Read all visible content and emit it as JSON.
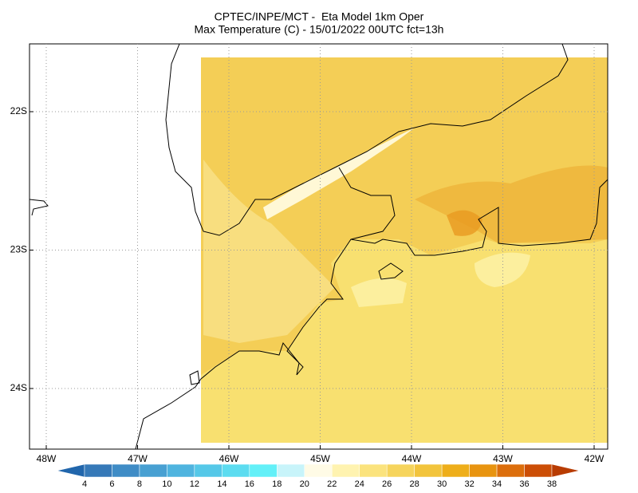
{
  "title_line1": "CPTEC/INPE/MCT -  Eta Model 1km Oper",
  "title_line2": "Max Temperature (C) - 15/01/2022 00UTC fct=13h",
  "map": {
    "lat_ticks": [
      {
        "value": -22,
        "label": "22S"
      },
      {
        "value": -23,
        "label": "23S"
      },
      {
        "value": -24,
        "label": "24S"
      }
    ],
    "lon_ticks": [
      {
        "value": -48,
        "label": "48W"
      },
      {
        "value": -47,
        "label": "47W"
      },
      {
        "value": -46,
        "label": "46W"
      },
      {
        "value": -45,
        "label": "45W"
      },
      {
        "value": -44,
        "label": "44W"
      },
      {
        "value": -43,
        "label": "43W"
      },
      {
        "value": -42,
        "label": "42W"
      }
    ]
  },
  "colorbar": {
    "ticks": [
      4,
      6,
      8,
      10,
      12,
      14,
      16,
      18,
      20,
      22,
      24,
      26,
      28,
      30,
      32,
      34,
      36,
      38
    ],
    "colors": [
      "#2166ac",
      "#3679b8",
      "#3f8cc6",
      "#48a0d2",
      "#4fb4df",
      "#55c8e8",
      "#5cdcf0",
      "#63f0f8",
      "#c8f4fa",
      "#fffbe6",
      "#fff3b0",
      "#fbe37d",
      "#f6d45c",
      "#f2c43c",
      "#eeae1a",
      "#e89410",
      "#dc6e0c",
      "#cc4e06",
      "#b83c02"
    ]
  }
}
